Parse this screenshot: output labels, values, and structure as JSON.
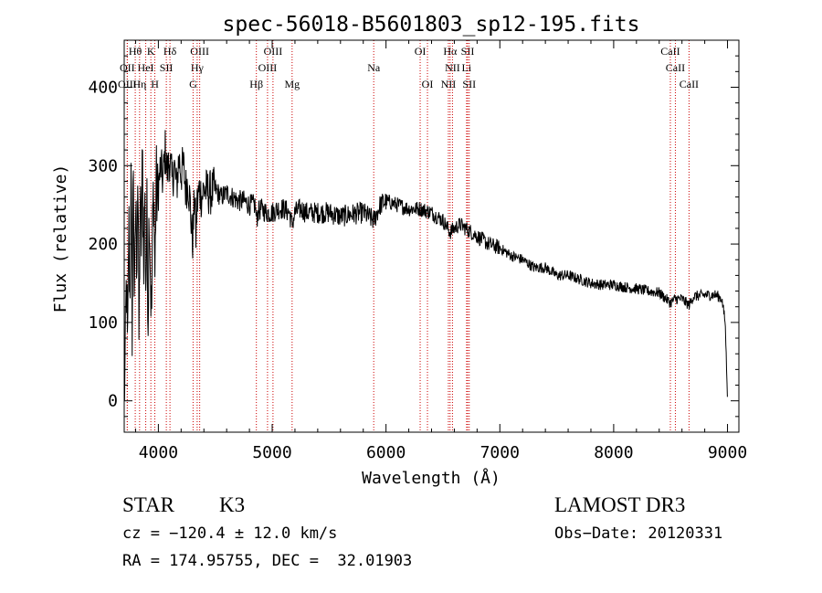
{
  "chart_data": {
    "type": "line",
    "title": "spec-56018-B5601803_sp12-195.fits",
    "xlabel": "Wavelength (Å)",
    "ylabel": "Flux (relative)",
    "xlim": [
      3700,
      9100
    ],
    "ylim": [
      -40,
      460
    ],
    "x_ticks": [
      4000,
      5000,
      6000,
      7000,
      8000,
      9000
    ],
    "y_ticks": [
      0,
      100,
      200,
      300,
      400
    ],
    "grid": false,
    "series": [
      {
        "name": "spectrum",
        "x": [
          3700,
          3710,
          3720,
          3730,
          3740,
          3750,
          3760,
          3770,
          3780,
          3790,
          3800,
          3810,
          3820,
          3830,
          3840,
          3850,
          3860,
          3870,
          3880,
          3890,
          3900,
          3910,
          3920,
          3930,
          3940,
          3950,
          3960,
          3970,
          3980,
          3990,
          4000,
          4020,
          4040,
          4060,
          4080,
          4100,
          4120,
          4140,
          4160,
          4180,
          4200,
          4220,
          4240,
          4260,
          4280,
          4300,
          4310,
          4320,
          4330,
          4340,
          4360,
          4380,
          4400,
          4450,
          4500,
          4550,
          4600,
          4650,
          4700,
          4750,
          4800,
          4850,
          4862,
          4875,
          4900,
          4950,
          5000,
          5050,
          5100,
          5150,
          5175,
          5200,
          5250,
          5300,
          5400,
          5500,
          5600,
          5700,
          5800,
          5892,
          5950,
          6000,
          6100,
          6200,
          6300,
          6400,
          6500,
          6563,
          6600,
          6650,
          6700,
          6800,
          6900,
          7000,
          7100,
          7200,
          7300,
          7400,
          7500,
          7600,
          7700,
          7800,
          7900,
          8000,
          8100,
          8200,
          8300,
          8400,
          8498,
          8542,
          8600,
          8662,
          8700,
          8800,
          8900,
          8950,
          8980,
          9000
        ],
        "values": [
          0,
          60,
          160,
          40,
          240,
          120,
          280,
          100,
          320,
          90,
          260,
          180,
          300,
          70,
          250,
          200,
          310,
          180,
          270,
          140,
          240,
          110,
          260,
          170,
          100,
          230,
          280,
          150,
          290,
          250,
          270,
          300,
          280,
          320,
          290,
          310,
          280,
          300,
          270,
          310,
          290,
          300,
          270,
          280,
          250,
          200,
          230,
          270,
          210,
          250,
          270,
          260,
          270,
          265,
          270,
          260,
          265,
          260,
          255,
          255,
          250,
          250,
          230,
          240,
          245,
          240,
          240,
          245,
          245,
          240,
          225,
          240,
          245,
          240,
          240,
          240,
          235,
          238,
          240,
          230,
          250,
          255,
          250,
          245,
          245,
          240,
          230,
          215,
          220,
          225,
          220,
          210,
          200,
          195,
          185,
          180,
          170,
          170,
          160,
          160,
          155,
          150,
          148,
          148,
          145,
          143,
          140,
          138,
          125,
          130,
          130,
          122,
          133,
          135,
          135,
          130,
          100,
          0
        ]
      }
    ],
    "lines": [
      {
        "label": "Hθ",
        "x": 3797,
        "row": 0
      },
      {
        "label": "K",
        "x": 3934,
        "row": 0
      },
      {
        "label": "Hδ",
        "x": 4102,
        "row": 0
      },
      {
        "label": "OIII",
        "x": 4363,
        "row": 0
      },
      {
        "label": "OIII",
        "x": 5007,
        "row": 0
      },
      {
        "label": "OI",
        "x": 6300,
        "row": 0
      },
      {
        "label": "Hα",
        "x": 6563,
        "row": 0
      },
      {
        "label": "SII",
        "x": 6717,
        "row": 0
      },
      {
        "label": "CaII",
        "x": 8498,
        "row": 0
      },
      {
        "label": "OII",
        "x": 3727,
        "row": 1
      },
      {
        "label": "HeI",
        "x": 3889,
        "row": 1
      },
      {
        "label": "SII",
        "x": 4070,
        "row": 1
      },
      {
        "label": "Hγ",
        "x": 4341,
        "row": 1
      },
      {
        "label": "OIII",
        "x": 4959,
        "row": 1
      },
      {
        "label": "Na",
        "x": 5892,
        "row": 1
      },
      {
        "label": "NII",
        "x": 6584,
        "row": 1
      },
      {
        "label": "Li",
        "x": 6708,
        "row": 1
      },
      {
        "label": "CaII",
        "x": 8542,
        "row": 1
      },
      {
        "label": "OIII",
        "x": 3727,
        "row": 2
      },
      {
        "label": "Hη",
        "x": 3835,
        "row": 2
      },
      {
        "label": "H",
        "x": 3969,
        "row": 2
      },
      {
        "label": "G",
        "x": 4305,
        "row": 2
      },
      {
        "label": "Hβ",
        "x": 4861,
        "row": 2
      },
      {
        "label": "Mg",
        "x": 5175,
        "row": 2
      },
      {
        "label": "OI",
        "x": 6364,
        "row": 2
      },
      {
        "label": "NII",
        "x": 6548,
        "row": 2
      },
      {
        "label": "SII",
        "x": 6731,
        "row": 2
      },
      {
        "label": "CaII",
        "x": 8662,
        "row": 2
      }
    ]
  },
  "info": {
    "object_class": "STAR",
    "subclass": "K3",
    "survey": "LAMOST DR3",
    "cz": "cz = −120.4 ± 12.0 km/s",
    "obs_date": "Obs−Date: 20120331",
    "coords": "RA = 174.95755, DEC =  32.01903"
  }
}
